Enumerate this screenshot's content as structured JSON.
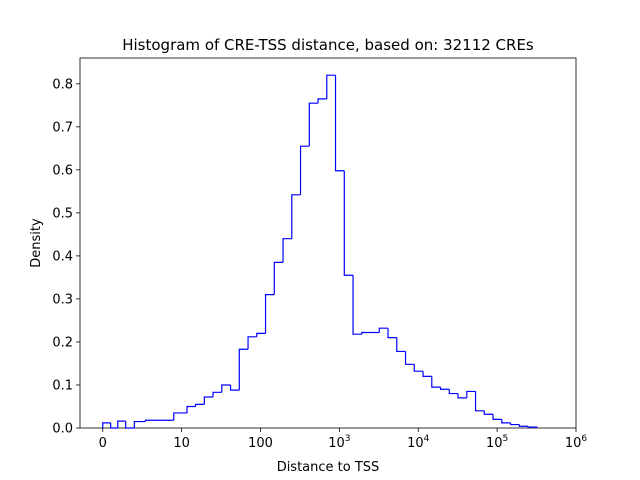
{
  "chart_data": {
    "type": "histogram",
    "title": "Histogram of CRE-TSS distance, based on: 32112 CREs",
    "xlabel": "Distance to TSS",
    "ylabel": "Density",
    "xscale": "symlog",
    "ylim": [
      0,
      0.86
    ],
    "grid": false,
    "line_color": "#0000ff",
    "x_ticks": [
      {
        "value": 0,
        "label": "0"
      },
      {
        "value": 10,
        "label": "10"
      },
      {
        "value": 100,
        "label": "100"
      },
      {
        "value": 1000,
        "base": "10",
        "exp": "3"
      },
      {
        "value": 10000,
        "base": "10",
        "exp": "4"
      },
      {
        "value": 100000,
        "base": "10",
        "exp": "5"
      },
      {
        "value": 1000000,
        "base": "10",
        "exp": "6"
      }
    ],
    "y_ticks": [
      "0.0",
      "0.1",
      "0.2",
      "0.3",
      "0.4",
      "0.5",
      "0.6",
      "0.7",
      "0.8"
    ],
    "bin_edges": [
      0,
      1.0,
      1.9,
      2.9,
      4.0,
      5.4,
      7.0,
      9.0,
      11.7,
      15.0,
      19.4,
      25.0,
      32.3,
      41.7,
      53.8,
      69.5,
      89.7,
      115.8,
      149.5,
      193.0,
      249.2,
      321.7,
      415.3,
      536.2,
      692.2,
      893.6,
      1154,
      1490,
      1923,
      2483,
      3206,
      4139,
      5344,
      6899,
      8907,
      11500,
      14846,
      19167,
      24746,
      31948,
      41246,
      53250,
      68749,
      88758,
      114591,
      147941,
      190998,
      246587,
      318355
    ],
    "density": [
      0.012,
      0.0,
      0.016,
      0.0,
      0.015,
      0.018,
      0.018,
      0.035,
      0.05,
      0.055,
      0.072,
      0.083,
      0.1,
      0.088,
      0.183,
      0.212,
      0.22,
      0.31,
      0.385,
      0.44,
      0.542,
      0.655,
      0.755,
      0.765,
      0.82,
      0.598,
      0.355,
      0.218,
      0.222,
      0.222,
      0.232,
      0.21,
      0.178,
      0.148,
      0.132,
      0.12,
      0.095,
      0.09,
      0.08,
      0.07,
      0.085,
      0.04,
      0.032,
      0.02,
      0.012,
      0.008,
      0.004,
      0.002
    ]
  }
}
